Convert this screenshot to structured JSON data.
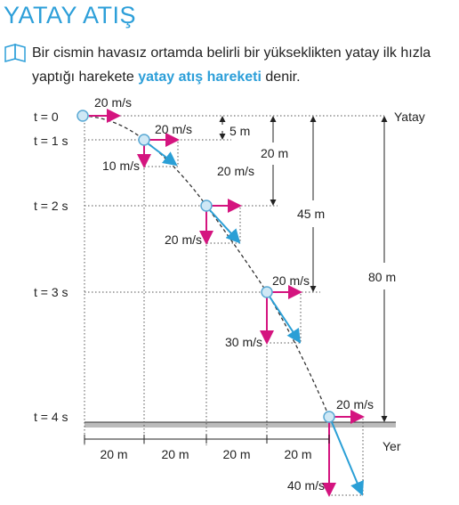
{
  "header": {
    "title": "YATAY ATIŞ"
  },
  "intro": {
    "text_before": "Bir cismin havasız ortamda belirli bir yükseklikten yatay ilk hızla yaptığı harekete",
    "highlight": "yatay atış hareketi",
    "text_after": "denir."
  },
  "diagram": {
    "time_labels": [
      "t = 0",
      "t = 1 s",
      "t = 2 s",
      "t = 3 s",
      "t = 4 s"
    ],
    "velocity_labels": [
      "20 m/s",
      "20 m/s",
      "10 m/s",
      "20 m/s",
      "20 m/s",
      "20 m/s",
      "30 m/s",
      "20 m/s",
      "40 m/s"
    ],
    "height_labels": [
      "5 m",
      "20 m",
      "45 m",
      "80 m"
    ],
    "horizontal_labels": [
      "20 m",
      "20 m",
      "20 m",
      "20 m"
    ],
    "reference_labels": {
      "top": "Yatay",
      "ground": "Yer"
    }
  }
}
